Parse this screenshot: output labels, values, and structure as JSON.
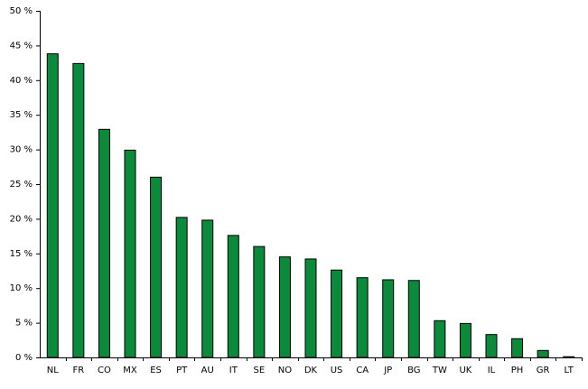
{
  "chart_data": {
    "type": "bar",
    "categories": [
      "NL",
      "FR",
      "CO",
      "MX",
      "ES",
      "PT",
      "AU",
      "IT",
      "SE",
      "NO",
      "DK",
      "US",
      "CA",
      "JP",
      "BG",
      "TW",
      "UK",
      "IL",
      "PH",
      "GR",
      "LT"
    ],
    "values": [
      43.8,
      42.4,
      32.9,
      29.9,
      26.0,
      20.2,
      19.8,
      17.6,
      16.0,
      14.5,
      14.2,
      12.6,
      11.5,
      11.2,
      11.1,
      5.3,
      4.9,
      3.3,
      2.7,
      1.0,
      0.1
    ],
    "color": "#0b8a3c",
    "ylim": [
      0,
      50
    ],
    "yticks": [
      {
        "value": 0,
        "label": "0 %"
      },
      {
        "value": 5,
        "label": "5 %"
      },
      {
        "value": 10,
        "label": "10 %"
      },
      {
        "value": 15,
        "label": "15 %"
      },
      {
        "value": 20,
        "label": "20 %"
      },
      {
        "value": 25,
        "label": "25 %"
      },
      {
        "value": 30,
        "label": "30 %"
      },
      {
        "value": 35,
        "label": "35 %"
      },
      {
        "value": 40,
        "label": "40 %"
      },
      {
        "value": 45,
        "label": "45 %"
      },
      {
        "value": 50,
        "label": "50 %"
      }
    ],
    "grid": false
  }
}
